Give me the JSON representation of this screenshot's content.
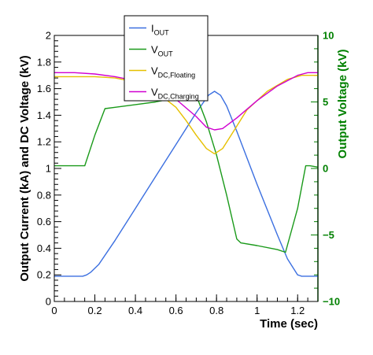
{
  "chart_data": {
    "type": "line",
    "title": "",
    "xlabel": "Time (sec)",
    "ylabel": "Output Current (kA) and DC Voltage (kV)",
    "ylabel_right": "Output Voltage (kV)",
    "xlim": [
      0,
      1.3
    ],
    "ylim": [
      0,
      2
    ],
    "ylim_right": [
      -10,
      10
    ],
    "x_ticks": [
      "0",
      "0.2",
      "0.4",
      "0.6",
      "0.8",
      "1",
      "1.2"
    ],
    "y_ticks": [
      "0",
      "0.2",
      "0.4",
      "0.6",
      "0.8",
      "1",
      "1.2",
      "1.4",
      "1.6",
      "1.8",
      "2"
    ],
    "y_right_ticks": [
      "10",
      "5",
      "0",
      "−5",
      "−10"
    ],
    "legend_position": "top-center",
    "grid": false,
    "series": [
      {
        "name": "I",
        "name_sub": "OUT",
        "axis": "left",
        "color": "#3b6fe0",
        "x": [
          0,
          0.14,
          0.16,
          0.18,
          0.22,
          0.3,
          0.4,
          0.5,
          0.6,
          0.7,
          0.76,
          0.79,
          0.82,
          0.85,
          0.9,
          1.0,
          1.1,
          1.15,
          1.2,
          1.22,
          1.24,
          1.3
        ],
        "values": [
          0.19,
          0.19,
          0.2,
          0.22,
          0.28,
          0.46,
          0.7,
          0.94,
          1.18,
          1.42,
          1.55,
          1.58,
          1.55,
          1.47,
          1.28,
          0.88,
          0.5,
          0.32,
          0.2,
          0.19,
          0.19,
          0.19
        ]
      },
      {
        "name": "V",
        "name_sub": "OUT",
        "axis": "right",
        "color": "#1a9a1a",
        "x": [
          0,
          0.15,
          0.2,
          0.25,
          0.3,
          0.4,
          0.5,
          0.6,
          0.65,
          0.7,
          0.75,
          0.8,
          0.85,
          0.9,
          0.92,
          1.0,
          1.1,
          1.14,
          1.2,
          1.24,
          1.26,
          1.3
        ],
        "values": [
          0.2,
          0.2,
          2.5,
          4.5,
          4.6,
          4.8,
          5.0,
          5.3,
          5.4,
          5.5,
          3.5,
          1.0,
          -2.0,
          -5.3,
          -5.6,
          -5.8,
          -6.1,
          -6.3,
          -3.0,
          0.2,
          0.2,
          0.1
        ]
      },
      {
        "name": "V",
        "name_sub": "DC,Floating",
        "axis": "left",
        "color": "#e6c000",
        "x": [
          0,
          0.1,
          0.2,
          0.3,
          0.4,
          0.5,
          0.6,
          0.65,
          0.7,
          0.75,
          0.79,
          0.83,
          0.88,
          0.95,
          1.05,
          1.15,
          1.22,
          1.3
        ],
        "values": [
          1.69,
          1.69,
          1.69,
          1.68,
          1.65,
          1.58,
          1.46,
          1.36,
          1.25,
          1.15,
          1.11,
          1.15,
          1.27,
          1.44,
          1.58,
          1.67,
          1.7,
          1.7
        ]
      },
      {
        "name": "V",
        "name_sub": "DC,Charging",
        "axis": "left",
        "color": "#d000d0",
        "x": [
          0,
          0.1,
          0.2,
          0.3,
          0.4,
          0.5,
          0.6,
          0.7,
          0.75,
          0.79,
          0.83,
          0.9,
          1.0,
          1.1,
          1.2,
          1.25,
          1.3
        ],
        "values": [
          1.72,
          1.72,
          1.71,
          1.69,
          1.66,
          1.61,
          1.52,
          1.39,
          1.31,
          1.29,
          1.3,
          1.38,
          1.51,
          1.62,
          1.7,
          1.72,
          1.72
        ]
      }
    ]
  }
}
